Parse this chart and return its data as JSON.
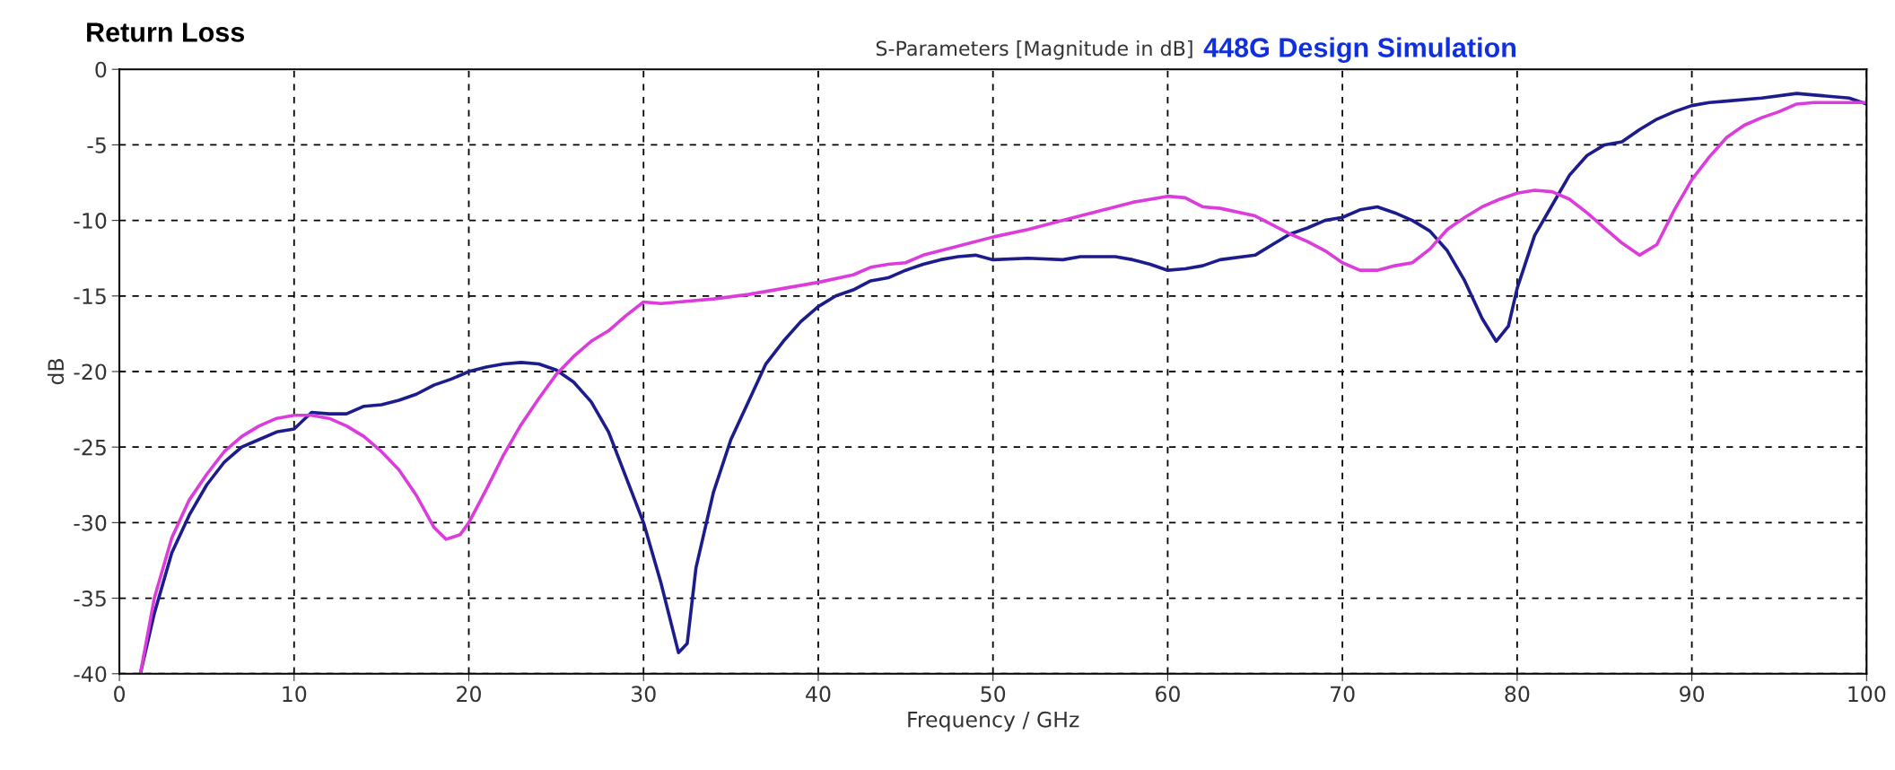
{
  "chart_data": {
    "type": "line",
    "title": "Return Loss",
    "subtitle": "S-Parameters [Magnitude in dB]",
    "annotations": [
      "448G Design Simulation"
    ],
    "xlabel": "Frequency / GHz",
    "ylabel": "dB",
    "xlim": [
      0,
      100
    ],
    "xticks": [
      0,
      10,
      20,
      30,
      40,
      50,
      60,
      70,
      80,
      90,
      100
    ],
    "ylim": [
      -40,
      0
    ],
    "yticks": [
      -40,
      -35,
      -30,
      -25,
      -20,
      -15,
      -10,
      -5,
      0
    ],
    "grid": true,
    "legend": false,
    "marker": "none",
    "line_style": "solid",
    "series": [
      {
        "color": "#1c1c8c",
        "x": [
          1.2,
          2,
          3,
          4,
          5,
          6,
          7,
          8,
          9,
          10,
          11,
          12,
          13,
          14,
          15,
          16,
          17,
          18,
          19,
          20,
          21,
          22,
          23,
          24,
          25,
          26,
          27,
          28,
          29,
          30,
          31,
          32,
          32.5,
          33,
          34,
          35,
          36,
          37,
          38,
          39,
          40,
          41,
          42,
          43,
          44,
          45,
          46,
          47,
          48,
          49,
          50,
          52,
          54,
          55,
          57,
          58,
          59,
          60,
          61,
          62,
          63,
          65,
          66,
          67,
          68,
          69,
          70,
          71,
          72,
          73,
          74,
          75,
          76,
          77,
          78,
          78.8,
          79.5,
          80,
          81,
          82,
          83,
          84,
          85,
          86,
          87,
          88,
          89,
          90,
          91,
          92,
          94,
          96,
          97,
          99,
          100
        ],
        "values": [
          -40,
          -36,
          -32,
          -29.5,
          -27.5,
          -26,
          -25,
          -24.5,
          -24,
          -23.8,
          -22.7,
          -22.8,
          -22.8,
          -22.3,
          -22.2,
          -21.9,
          -21.5,
          -20.9,
          -20.5,
          -20,
          -19.7,
          -19.5,
          -19.4,
          -19.5,
          -19.9,
          -20.7,
          -22,
          -24,
          -27,
          -30,
          -34,
          -38.6,
          -38,
          -33,
          -28,
          -24.5,
          -22,
          -19.5,
          -18,
          -16.7,
          -15.7,
          -15,
          -14.6,
          -14,
          -13.8,
          -13.3,
          -12.9,
          -12.6,
          -12.4,
          -12.3,
          -12.6,
          -12.5,
          -12.6,
          -12.4,
          -12.4,
          -12.6,
          -12.9,
          -13.3,
          -13.2,
          -13.0,
          -12.6,
          -12.3,
          -11.6,
          -10.9,
          -10.5,
          -10,
          -9.8,
          -9.3,
          -9.1,
          -9.5,
          -10,
          -10.7,
          -12,
          -14,
          -16.5,
          -18,
          -17,
          -14.5,
          -11,
          -9,
          -7,
          -5.7,
          -5,
          -4.8,
          -4,
          -3.3,
          -2.8,
          -2.4,
          -2.2,
          -2.1,
          -1.9,
          -1.6,
          -1.7,
          -1.9,
          -2.3
        ]
      },
      {
        "color": "#dc3cdc",
        "x": [
          1.2,
          2,
          3,
          4,
          5,
          6,
          7,
          8,
          9,
          10,
          11,
          12,
          13,
          14,
          15,
          16,
          17,
          18,
          18.7,
          19.5,
          20,
          21,
          22,
          23,
          24,
          25,
          26,
          27,
          28,
          29,
          30,
          31,
          32,
          34,
          36,
          38,
          40,
          42,
          43,
          44,
          45,
          46,
          48,
          50,
          52,
          54,
          56,
          58,
          60,
          61,
          62,
          63,
          65,
          66,
          67,
          68,
          69,
          70,
          71,
          72,
          73,
          74,
          75,
          76,
          77,
          78,
          79,
          80,
          81,
          82,
          83,
          84,
          85,
          86,
          87,
          88,
          89,
          90,
          91,
          92,
          93,
          94,
          95,
          96,
          97,
          100
        ],
        "values": [
          -40,
          -35,
          -31,
          -28.5,
          -26.8,
          -25.3,
          -24.3,
          -23.6,
          -23.1,
          -22.9,
          -22.9,
          -23.1,
          -23.6,
          -24.3,
          -25.3,
          -26.5,
          -28.2,
          -30.3,
          -31.1,
          -30.8,
          -30,
          -27.8,
          -25.5,
          -23.5,
          -21.8,
          -20.2,
          -19,
          -18,
          -17.3,
          -16.3,
          -15.4,
          -15.5,
          -15.4,
          -15.2,
          -14.9,
          -14.5,
          -14.1,
          -13.6,
          -13.1,
          -12.9,
          -12.8,
          -12.3,
          -11.7,
          -11.1,
          -10.6,
          -10.0,
          -9.4,
          -8.8,
          -8.4,
          -8.5,
          -9.1,
          -9.2,
          -9.7,
          -10.3,
          -10.9,
          -11.4,
          -12,
          -12.8,
          -13.3,
          -13.3,
          -13.0,
          -12.8,
          -11.9,
          -10.6,
          -9.8,
          -9.1,
          -8.6,
          -8.2,
          -8.0,
          -8.1,
          -8.6,
          -9.5,
          -10.5,
          -11.5,
          -12.3,
          -11.6,
          -9.3,
          -7.3,
          -5.8,
          -4.5,
          -3.7,
          -3.2,
          -2.8,
          -2.3,
          -2.2,
          -2.2
        ]
      }
    ]
  }
}
